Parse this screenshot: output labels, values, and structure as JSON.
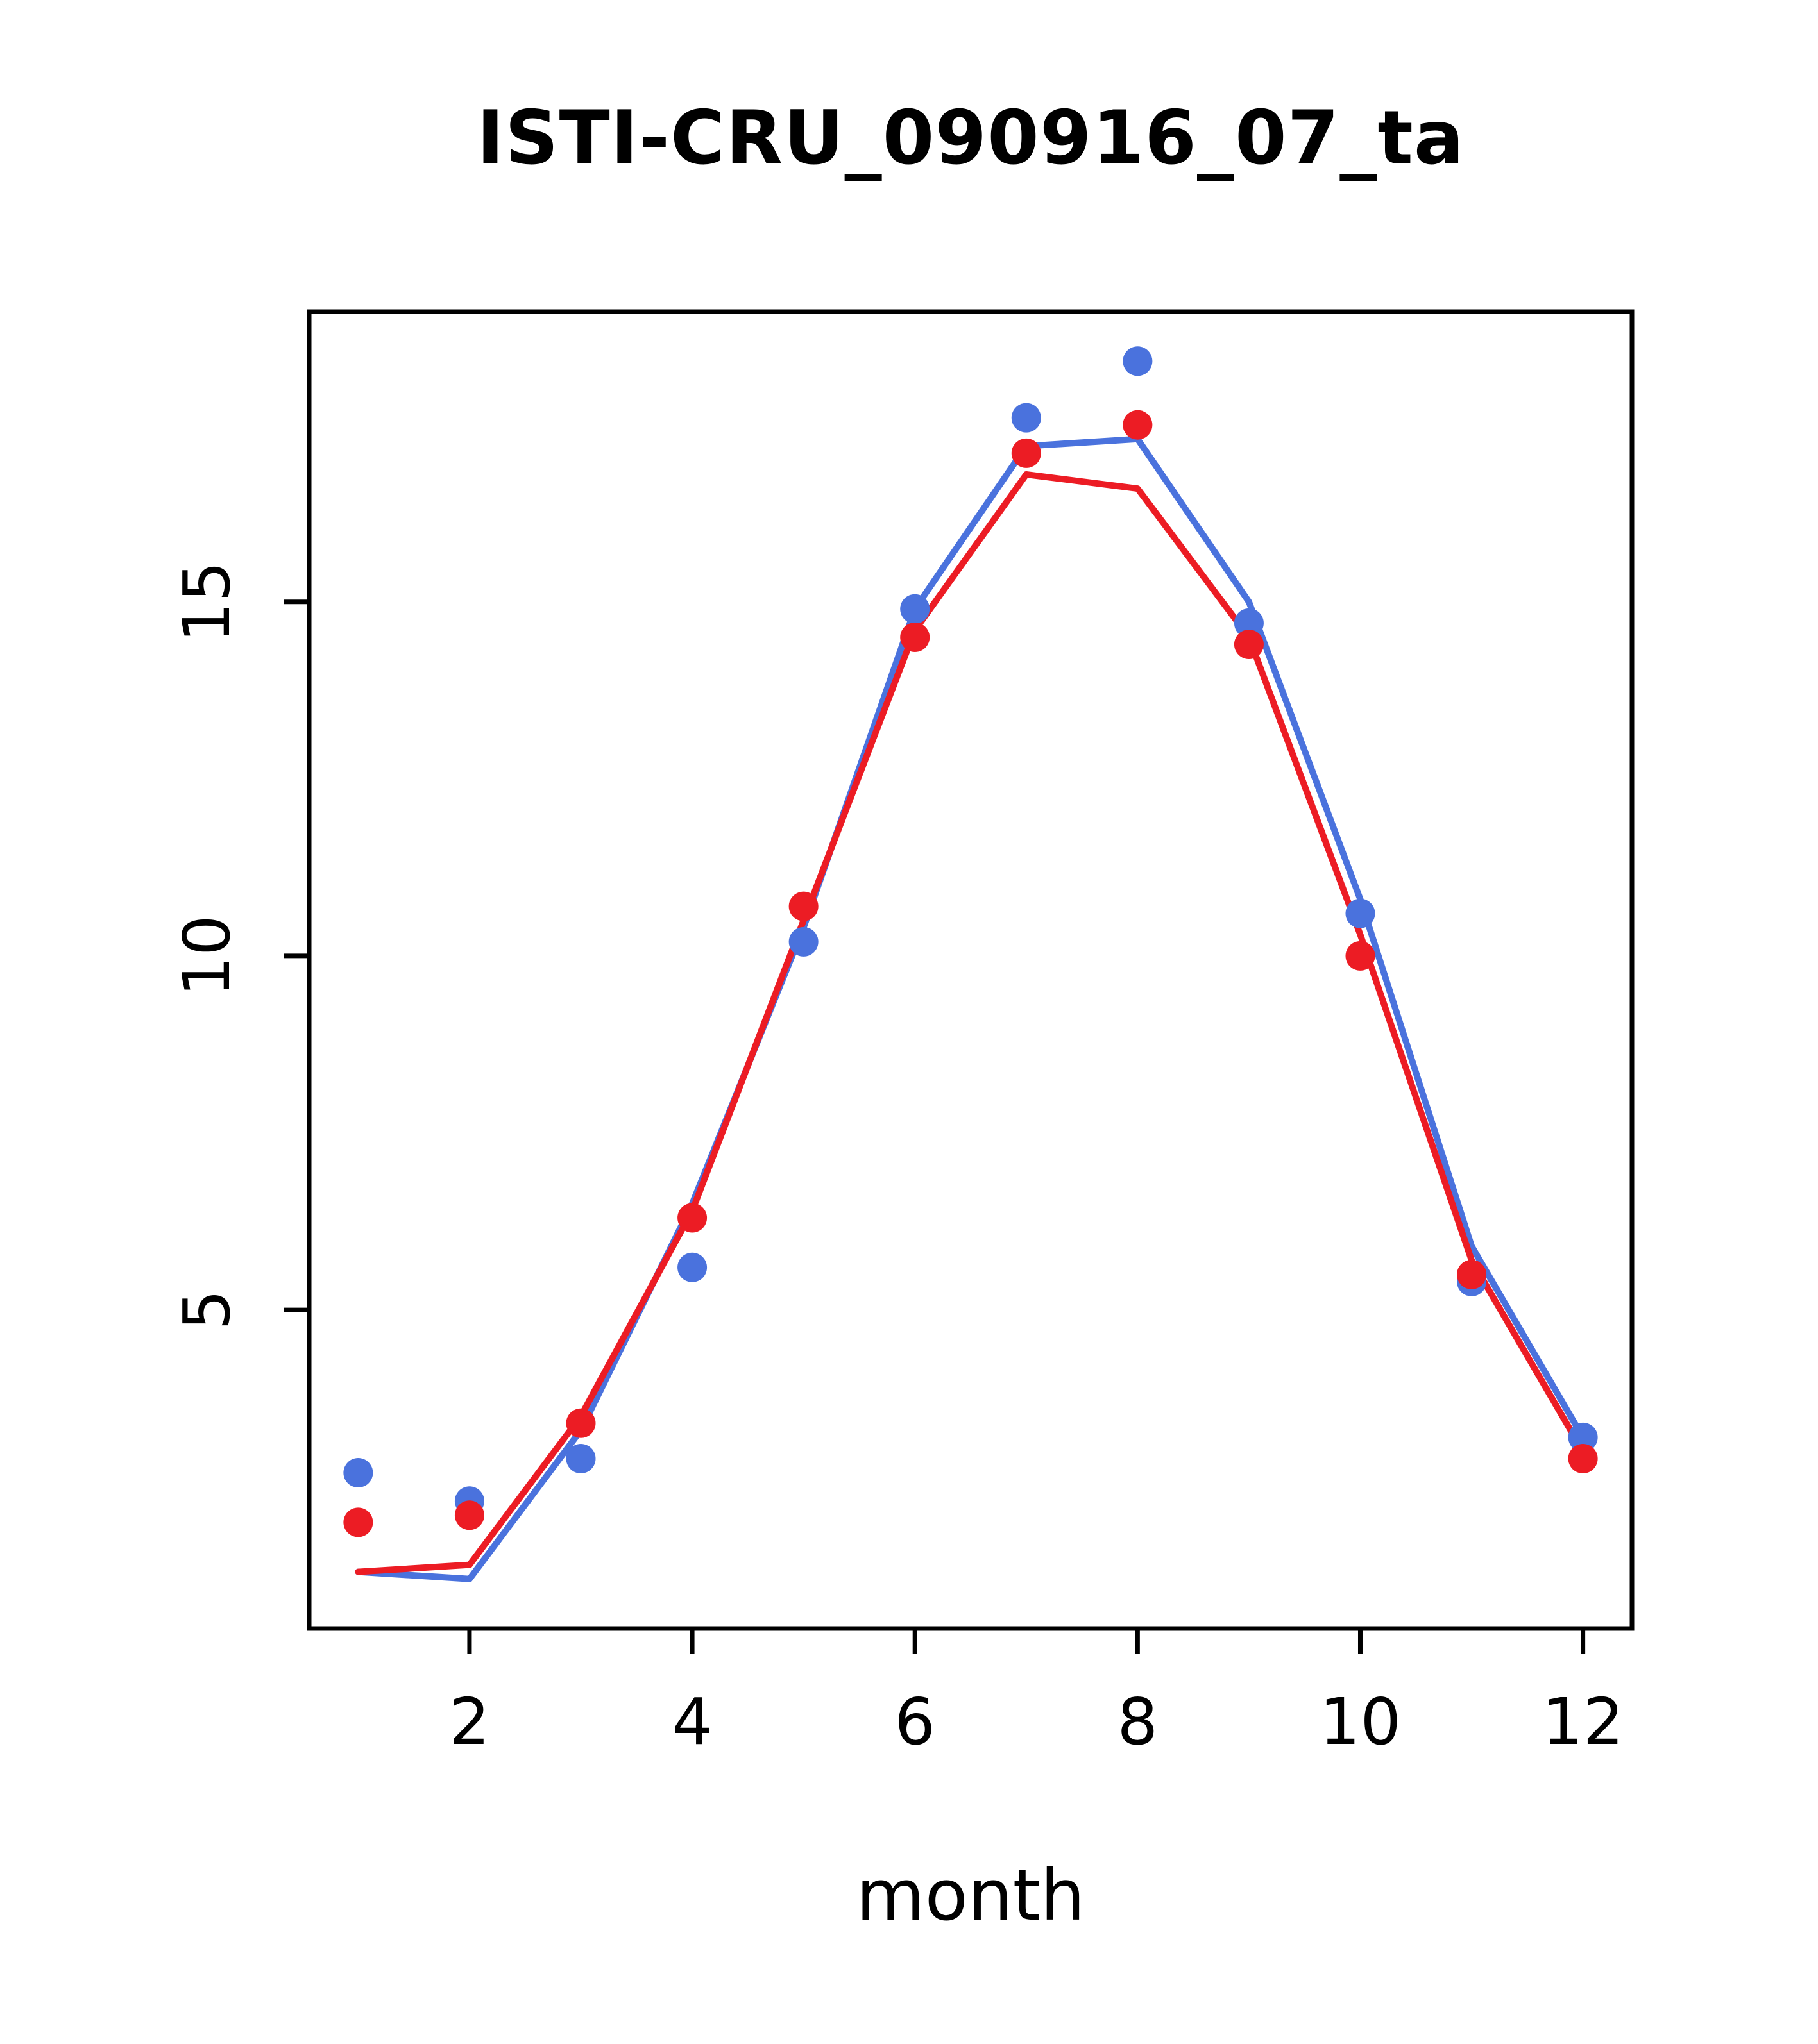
{
  "title": "ISTI-CRU_090916_07_ta",
  "colors": {
    "blue": "#4a72dd",
    "red": "#ec1c24",
    "axis": "#000000",
    "background": "#ffffff"
  },
  "chart_data": {
    "type": "line",
    "title": "ISTI-CRU_090916_07_ta",
    "xlabel": "month",
    "ylabel": "",
    "x": [
      1,
      2,
      3,
      4,
      5,
      6,
      7,
      8,
      9,
      10,
      11,
      12
    ],
    "xlim": [
      0.56,
      12.44
    ],
    "ylim": [
      0.5,
      19.1
    ],
    "xticks": [
      2,
      4,
      6,
      8,
      10,
      12
    ],
    "yticks": [
      5,
      10,
      15
    ],
    "grid": false,
    "legend": null,
    "series": [
      {
        "name": "blue-line",
        "kind": "line",
        "color": "#4a72dd",
        "values": [
          1.3,
          1.2,
          3.3,
          6.5,
          10.4,
          14.9,
          17.2,
          17.3,
          15.0,
          10.8,
          5.9,
          3.2
        ]
      },
      {
        "name": "red-line",
        "kind": "line",
        "color": "#ec1c24",
        "values": [
          1.3,
          1.4,
          3.5,
          6.4,
          10.5,
          14.6,
          16.8,
          16.6,
          14.5,
          10.3,
          5.7,
          3.0
        ]
      },
      {
        "name": "blue-points",
        "kind": "scatter",
        "color": "#4a72dd",
        "values": [
          2.7,
          2.3,
          2.9,
          5.6,
          10.2,
          14.9,
          17.6,
          18.4,
          14.7,
          10.6,
          5.4,
          3.2
        ]
      },
      {
        "name": "red-points",
        "kind": "scatter",
        "color": "#ec1c24",
        "values": [
          2.0,
          2.1,
          3.4,
          6.3,
          10.7,
          14.5,
          17.1,
          17.5,
          14.4,
          10.0,
          5.5,
          2.9
        ]
      }
    ]
  }
}
